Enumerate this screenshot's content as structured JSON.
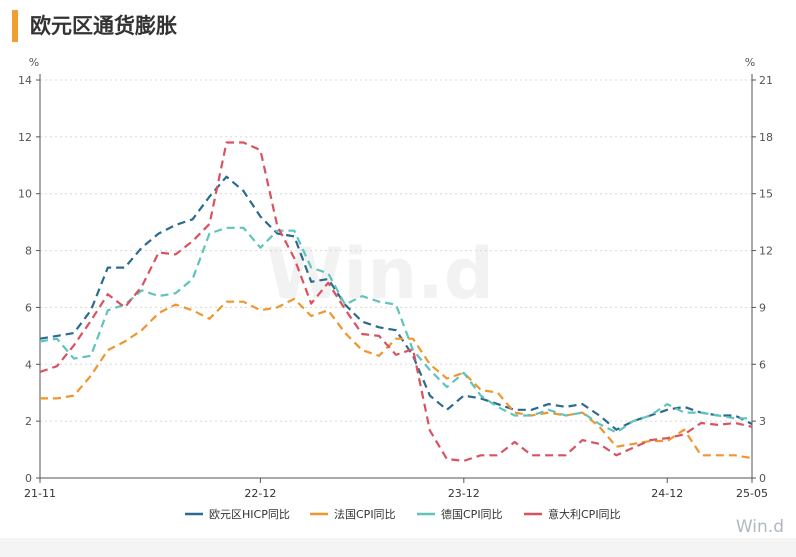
{
  "header": {
    "title": "欧元区通货膨胀"
  },
  "watermark": "Win.d",
  "logo": "Win.d",
  "chart_data": {
    "type": "line",
    "left_axis": {
      "unit": "%",
      "ylim": [
        0,
        14
      ],
      "ticks": [
        0,
        2,
        4,
        6,
        8,
        10,
        12,
        14
      ]
    },
    "right_axis": {
      "unit": "%",
      "ylim": [
        0,
        21
      ],
      "ticks": [
        0,
        3,
        6,
        9,
        12,
        15,
        18,
        21
      ]
    },
    "x_tick_labels": [
      "21-11",
      "22-12",
      "23-12",
      "24-12",
      "25-05"
    ],
    "x": [
      "21-11",
      "21-12",
      "22-01",
      "22-02",
      "22-03",
      "22-04",
      "22-05",
      "22-06",
      "22-07",
      "22-08",
      "22-09",
      "22-10",
      "22-11",
      "22-12",
      "23-01",
      "23-02",
      "23-03",
      "23-04",
      "23-05",
      "23-06",
      "23-07",
      "23-08",
      "23-09",
      "23-10",
      "23-11",
      "23-12",
      "24-01",
      "24-02",
      "24-03",
      "24-04",
      "24-05",
      "24-06",
      "24-07",
      "24-08",
      "24-09",
      "24-10",
      "24-11",
      "24-12",
      "25-01",
      "25-02",
      "25-03",
      "25-04",
      "25-05"
    ],
    "grid": true,
    "legend_position": "bottom",
    "series": [
      {
        "name": "欧元区HICP同比",
        "axis": "left",
        "color": "#2c6a8f",
        "values": [
          4.9,
          5.0,
          5.1,
          5.9,
          7.4,
          7.4,
          8.1,
          8.6,
          8.9,
          9.1,
          9.9,
          10.6,
          10.1,
          9.2,
          8.6,
          8.5,
          6.9,
          7.0,
          6.1,
          5.5,
          5.3,
          5.2,
          4.3,
          2.9,
          2.4,
          2.9,
          2.8,
          2.6,
          2.4,
          2.4,
          2.6,
          2.5,
          2.6,
          2.2,
          1.7,
          2.0,
          2.2,
          2.4,
          2.5,
          2.3,
          2.2,
          2.2,
          1.9
        ]
      },
      {
        "name": "法国CPI同比",
        "axis": "left",
        "color": "#f0962d",
        "values": [
          2.8,
          2.8,
          2.9,
          3.6,
          4.5,
          4.8,
          5.2,
          5.8,
          6.1,
          5.9,
          5.6,
          6.2,
          6.2,
          5.9,
          6.0,
          6.3,
          5.7,
          5.9,
          5.1,
          4.5,
          4.3,
          4.9,
          4.9,
          4.0,
          3.5,
          3.7,
          3.1,
          3.0,
          2.3,
          2.2,
          2.3,
          2.2,
          2.3,
          1.8,
          1.1,
          1.2,
          1.3,
          1.3,
          1.7,
          0.8,
          0.8,
          0.8,
          0.7
        ]
      },
      {
        "name": "德国CPI同比",
        "axis": "left",
        "color": "#5fc4bc",
        "values": [
          4.8,
          4.9,
          4.2,
          4.3,
          5.9,
          6.1,
          6.6,
          6.4,
          6.5,
          7.0,
          8.6,
          8.8,
          8.8,
          8.1,
          8.7,
          8.7,
          7.4,
          7.2,
          6.1,
          6.4,
          6.2,
          6.1,
          4.5,
          3.8,
          3.2,
          3.7,
          2.9,
          2.5,
          2.2,
          2.2,
          2.4,
          2.2,
          2.3,
          1.9,
          1.6,
          2.0,
          2.2,
          2.6,
          2.3,
          2.3,
          2.2,
          2.1,
          2.1
        ]
      },
      {
        "name": "意大利CPI同比",
        "axis": "right",
        "color": "#d8525f",
        "values": [
          5.6,
          5.9,
          7.0,
          8.3,
          9.7,
          9.0,
          10.1,
          11.9,
          11.8,
          12.5,
          13.4,
          17.7,
          17.7,
          17.3,
          13.3,
          11.6,
          9.2,
          10.3,
          8.9,
          7.6,
          7.5,
          6.5,
          6.8,
          2.5,
          1.0,
          0.9,
          1.2,
          1.2,
          1.9,
          1.2,
          1.2,
          1.2,
          2.0,
          1.8,
          1.2,
          1.6,
          2.0,
          2.1,
          2.3,
          2.9,
          2.8,
          2.9,
          2.7
        ]
      }
    ]
  }
}
